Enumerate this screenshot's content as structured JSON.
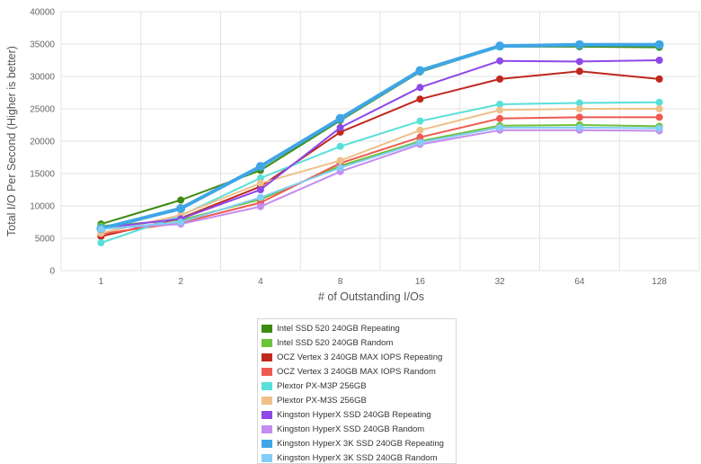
{
  "chart_data": {
    "type": "line",
    "title": "",
    "xlabel": "# of Outstanding I/Os",
    "ylabel": "Total I/O Per Second (Higher is better)",
    "categories": [
      "1",
      "2",
      "4",
      "8",
      "16",
      "32",
      "64",
      "128"
    ],
    "ylim": [
      0,
      40000
    ],
    "yticks": [
      "0",
      "5000",
      "10000",
      "15000",
      "20000",
      "25000",
      "30000",
      "35000",
      "40000"
    ],
    "grid": true,
    "legend_position": "bottom",
    "series": [
      {
        "name": "Intel SSD 520 240GB Repeating",
        "color": "#3d8b12",
        "values": [
          7200,
          10900,
          15500,
          23200,
          30700,
          34600,
          34600,
          34500
        ]
      },
      {
        "name": "Intel SSD 520 240GB Random",
        "color": "#6cc23a",
        "values": [
          6900,
          7800,
          11000,
          16200,
          20000,
          22400,
          22500,
          22300
        ]
      },
      {
        "name": "OCZ Vertex 3 240GB MAX IOPS Repeating",
        "color": "#c0281e",
        "values": [
          5300,
          8100,
          13000,
          21400,
          26500,
          29600,
          30800,
          29600
        ]
      },
      {
        "name": "OCZ Vertex 3 240GB MAX IOPS Random",
        "color": "#ee5a50",
        "values": [
          5700,
          7400,
          10500,
          16600,
          20600,
          23500,
          23700,
          23700
        ]
      },
      {
        "name": "Plextor PX-M3P 256GB",
        "color": "#57e0d9",
        "values": [
          4300,
          8500,
          14300,
          19200,
          23100,
          25700,
          25900,
          26000
        ]
      },
      {
        "name": "Plextor PX-M3S 256GB",
        "color": "#efc08a",
        "values": [
          5800,
          8600,
          13500,
          17000,
          21700,
          24800,
          25000,
          25000
        ]
      },
      {
        "name": "Kingston HyperX SSD 240GB Repeating",
        "color": "#8e48e8",
        "values": [
          6600,
          8000,
          12500,
          22100,
          28300,
          32400,
          32300,
          32500
        ]
      },
      {
        "name": "Kingston HyperX SSD 240GB Random",
        "color": "#c48cf0",
        "values": [
          6500,
          7200,
          9900,
          15300,
          19500,
          21700,
          21700,
          21600
        ]
      },
      {
        "name": "Kingston HyperX 3K SSD 240GB Repeating",
        "color": "#3fa6e6",
        "values": [
          6500,
          9600,
          16100,
          23500,
          30900,
          34700,
          34900,
          34900
        ]
      },
      {
        "name": "Kingston HyperX 3K SSD 240GB Random",
        "color": "#80cdf5",
        "values": [
          6400,
          7500,
          11300,
          15900,
          19800,
          22100,
          22100,
          22000
        ]
      }
    ]
  }
}
